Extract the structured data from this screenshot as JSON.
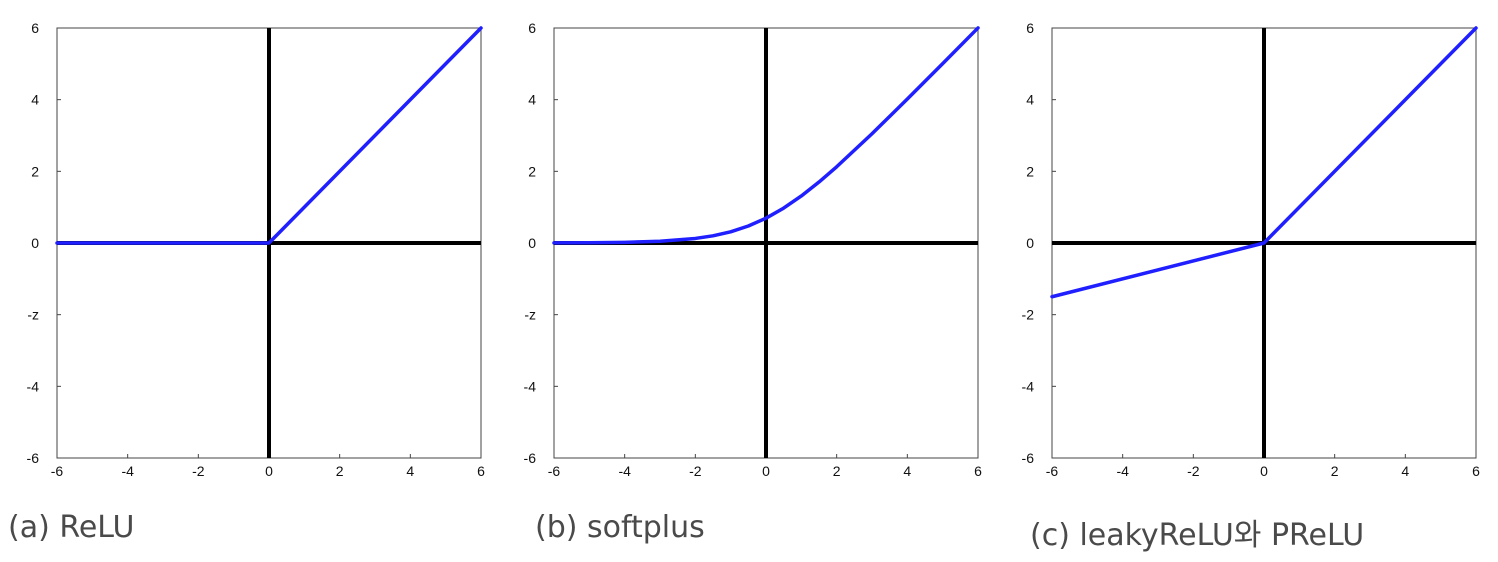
{
  "colors": {
    "curve": "#1f1fff",
    "axes": "#000000",
    "frame": "#444444",
    "caption": "#4a4a4a"
  },
  "chart_data": [
    {
      "type": "line",
      "caption": "(a) ReLU",
      "xlim": [
        -6,
        6
      ],
      "ylim": [
        -6,
        6
      ],
      "xticks": [
        "-6",
        "-4",
        "-2",
        "0",
        "2",
        "4",
        "6"
      ],
      "yticks": [
        "6",
        "4",
        "2",
        "0",
        "-z",
        "-4",
        "-6"
      ],
      "grid": false,
      "series": [
        {
          "x": [
            -6,
            0,
            6
          ],
          "y": [
            0,
            0,
            6
          ]
        }
      ]
    },
    {
      "type": "line",
      "caption": "(b) softplus",
      "xlim": [
        -6,
        6
      ],
      "ylim": [
        -6,
        6
      ],
      "xticks": [
        "-6",
        "-4",
        "-2",
        "0",
        "2",
        "4",
        "6"
      ],
      "yticks": [
        "6",
        "4",
        "2",
        "0",
        "-z",
        "-4",
        "-6"
      ],
      "grid": false,
      "series": [
        {
          "x": [
            -6,
            -5,
            -4,
            -3,
            -2,
            -1.5,
            -1,
            -0.5,
            0,
            0.5,
            1,
            1.5,
            2,
            3,
            4,
            5,
            6
          ],
          "y": [
            0.002,
            0.007,
            0.018,
            0.049,
            0.127,
            0.201,
            0.313,
            0.474,
            0.693,
            0.974,
            1.313,
            1.701,
            2.127,
            3.049,
            4.018,
            5.007,
            6.002
          ]
        }
      ]
    },
    {
      "type": "line",
      "caption": "(c) leakyReLU와 PReLU",
      "xlim": [
        -6,
        6
      ],
      "ylim": [
        -6,
        6
      ],
      "xticks": [
        "-6",
        "-4",
        "-2",
        "0",
        "2",
        "4",
        "6"
      ],
      "yticks": [
        "6",
        "4",
        "2",
        "0",
        "-2",
        "-4",
        "-6"
      ],
      "grid": false,
      "series": [
        {
          "x": [
            -6,
            0,
            6
          ],
          "y": [
            -1.5,
            0,
            6
          ]
        }
      ]
    }
  ]
}
